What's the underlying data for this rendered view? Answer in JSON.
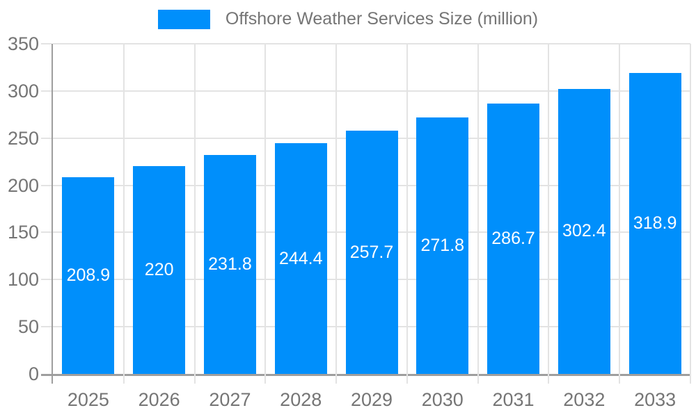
{
  "legend": {
    "label": "Offshore Weather Services Size (million)",
    "swatch_color": "#008FFB"
  },
  "chart_data": {
    "type": "bar",
    "title": "Offshore Weather Services Size (million)",
    "categories": [
      "2025",
      "2026",
      "2027",
      "2028",
      "2029",
      "2030",
      "2031",
      "2032",
      "2033"
    ],
    "values": [
      208.9,
      220,
      231.8,
      244.4,
      257.7,
      271.8,
      286.7,
      302.4,
      318.9
    ],
    "value_labels": [
      "208.9",
      "220",
      "231.8",
      "244.4",
      "257.7",
      "271.8",
      "286.7",
      "302.4",
      "318.9"
    ],
    "xlabel": "",
    "ylabel": "",
    "ylim": [
      0,
      350
    ],
    "ytick_step": 50,
    "yticks": [
      0,
      50,
      100,
      150,
      200,
      250,
      300,
      350
    ],
    "grid": true,
    "legend_position": "top",
    "bar_color": "#008FFB",
    "value_label_color": "#ffffff",
    "axis_label_color": "#757575",
    "gridline_color": "#e3e3e3",
    "axis_line_color": "#9e9e9e"
  }
}
